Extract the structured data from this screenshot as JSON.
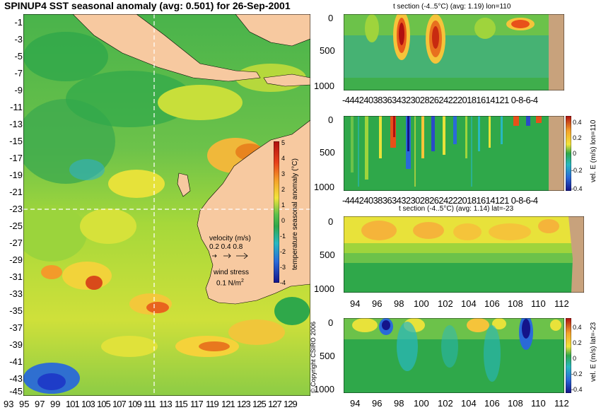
{
  "map": {
    "title": "SPINUP4 SST seasonal anomaly (avg: 0.501) for 26-Sep-2001",
    "lat_labels": [
      "-1",
      "-3",
      "-5",
      "-7",
      "-9",
      "-11",
      "-13",
      "-15",
      "-17",
      "-19",
      "-21",
      "-23",
      "-25",
      "-27",
      "-29",
      "-31",
      "-33",
      "-35",
      "-37",
      "-39",
      "-41",
      "-43",
      "-45"
    ],
    "lon_labels": [
      "93",
      "95",
      "97",
      "99",
      "101",
      "103",
      "105",
      "107",
      "109",
      "111",
      "113",
      "115",
      "117",
      "119",
      "121",
      "123",
      "125",
      "127",
      "129"
    ],
    "colorbar": {
      "label": "temperature seasonal anomaly (°C)",
      "ticks": [
        "5",
        "4",
        "3",
        "2",
        "1",
        "0",
        "-1",
        "-2",
        "-3",
        "-4"
      ]
    },
    "velocity_legend": {
      "title": "velocity (m/s)",
      "values": "0.2 0.4 0.8"
    },
    "wind_legend": {
      "title": "wind stress",
      "value": "0.1 N/m",
      "exp": "2"
    },
    "copyright": "© Copyright CSIRO 2006",
    "colors": {
      "land": "#f7c9a0",
      "cold": "#1e3cc8",
      "neutral": "#2fa84a",
      "warm": "#d62a0f"
    }
  },
  "panels": {
    "p1": {
      "title": "t section (-4..5°C) (avg: 1.19) lon=110",
      "y_ticks": [
        "0",
        "500",
        "1000"
      ],
      "x_ticks": "-44424038363432302826242220181614121 0-8-6-4"
    },
    "p2": {
      "y_ticks": [
        "0",
        "500",
        "1000"
      ],
      "x_ticks": "-44424038363432302826242220181614121 0-8-6-4",
      "side_label": "vel. E (m/s) lon=110",
      "cb_ticks": [
        "0.4",
        "0.2",
        "0",
        "-0.2",
        "-0.4"
      ]
    },
    "p3": {
      "title": "t section (-4..5°C) (avg: 1.14) lat=-23",
      "y_ticks": [
        "0",
        "500",
        "1000"
      ],
      "x_ticks": [
        "94",
        "96",
        "98",
        "100",
        "102",
        "104",
        "106",
        "108",
        "110",
        "112"
      ]
    },
    "p4": {
      "y_ticks": [
        "0",
        "500",
        "1000"
      ],
      "x_ticks": [
        "94",
        "96",
        "98",
        "100",
        "102",
        "104",
        "106",
        "108",
        "110",
        "112"
      ],
      "side_label": "vel. E (m/s) lat=-23",
      "cb_ticks": [
        "0.4",
        "0.2",
        "0",
        "-0.2",
        "-0.4"
      ]
    }
  }
}
